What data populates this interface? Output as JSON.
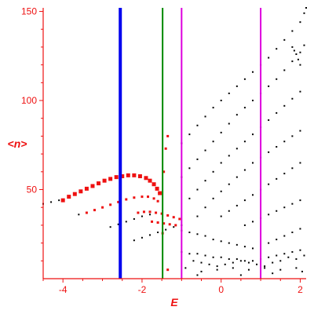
{
  "chart_data": {
    "type": "scatter",
    "title": "",
    "xlabel": "E",
    "ylabel": "<n>",
    "xlim": [
      -4.5,
      2.15
    ],
    "ylim": [
      0,
      152
    ],
    "xticks": [
      -4,
      -2,
      0,
      2
    ],
    "xtick_labels": [
      "-4",
      "-2",
      "0",
      "2"
    ],
    "yticks": [
      50,
      100,
      150
    ],
    "ytick_labels": [
      "50",
      "100",
      "150"
    ],
    "grid": false,
    "legend": "none",
    "colors": {
      "axis": "#ee1111",
      "red_points": "#ee1111",
      "black_points": "#000000",
      "blue_line": "#0000ee",
      "green_line": "#008800",
      "magenta_line": "#dd00dd"
    },
    "vertical_lines": [
      {
        "x": -2.55,
        "color": "blue",
        "width": "thick"
      },
      {
        "x": -1.48,
        "color": "green",
        "width": "medium"
      },
      {
        "x": -1.0,
        "color": "magenta",
        "width": "medium"
      },
      {
        "x": 1.0,
        "color": "magenta",
        "width": "medium"
      }
    ],
    "red_series": [
      {
        "points": [
          [
            -4.0,
            44
          ],
          [
            -3.85,
            46
          ],
          [
            -3.7,
            47.5
          ],
          [
            -3.55,
            49
          ],
          [
            -3.4,
            50.5
          ],
          [
            -3.25,
            52
          ],
          [
            -3.1,
            53.5
          ],
          [
            -2.95,
            55
          ],
          [
            -2.8,
            56
          ],
          [
            -2.65,
            57
          ],
          [
            -2.5,
            57.5
          ],
          [
            -2.35,
            58
          ],
          [
            -2.2,
            58
          ],
          [
            -2.05,
            57.5
          ],
          [
            -1.9,
            56.5
          ],
          [
            -1.8,
            55
          ],
          [
            -1.7,
            53
          ],
          [
            -1.62,
            50.5
          ],
          [
            -1.55,
            48
          ]
        ]
      },
      {
        "points": [
          [
            -3.4,
            37
          ],
          [
            -3.2,
            38.5
          ],
          [
            -3.0,
            40
          ],
          [
            -2.8,
            41.5
          ],
          [
            -2.6,
            43
          ],
          [
            -2.4,
            44.5
          ],
          [
            -2.2,
            45.5
          ],
          [
            -2.0,
            46
          ],
          [
            -1.85,
            46
          ],
          [
            -1.7,
            45
          ],
          [
            -1.6,
            43.5
          ]
        ]
      },
      {
        "points": [
          [
            -2.1,
            37
          ],
          [
            -1.95,
            37.5
          ],
          [
            -1.8,
            37.5
          ],
          [
            -1.65,
            37
          ],
          [
            -1.5,
            36.5
          ],
          [
            -1.35,
            35.5
          ],
          [
            -1.2,
            34.5
          ],
          [
            -1.05,
            33.5
          ]
        ]
      },
      {
        "points": [
          [
            -1.75,
            32
          ],
          [
            -1.6,
            31.5
          ],
          [
            -1.45,
            31
          ],
          [
            -1.3,
            30.5
          ],
          [
            -1.15,
            30
          ]
        ]
      },
      {
        "points": [
          [
            -1.48,
            25.5
          ],
          [
            -1.4,
            73
          ],
          [
            -1.35,
            80
          ],
          [
            -1.45,
            60
          ],
          [
            -1.35,
            5
          ]
        ]
      }
    ],
    "black_series": [
      {
        "points": [
          [
            -4.5,
            42
          ],
          [
            -4.3,
            43
          ],
          [
            -4.1,
            44
          ]
        ]
      },
      {
        "points": [
          [
            -3.6,
            36
          ],
          [
            -3.4,
            37
          ]
        ]
      },
      {
        "points": [
          [
            -2.8,
            29
          ],
          [
            -2.6,
            30.5
          ],
          [
            -2.4,
            32
          ],
          [
            -2.2,
            33.5
          ],
          [
            -2.0,
            35
          ],
          [
            -1.8,
            36
          ]
        ]
      },
      {
        "points": [
          [
            -2.2,
            21.5
          ],
          [
            -2.0,
            23
          ],
          [
            -1.8,
            24.5
          ],
          [
            -1.6,
            26
          ],
          [
            -1.4,
            27.5
          ],
          [
            -1.2,
            29
          ],
          [
            -1.0,
            30
          ]
        ]
      },
      {
        "points": [
          [
            -1.0,
            76
          ],
          [
            -0.8,
            81
          ],
          [
            -0.6,
            86
          ],
          [
            -0.4,
            91
          ],
          [
            -0.2,
            96
          ],
          [
            0.0,
            100
          ],
          [
            0.2,
            104
          ],
          [
            0.4,
            108
          ],
          [
            0.6,
            112
          ],
          [
            0.8,
            116
          ],
          [
            1.0,
            120
          ],
          [
            1.2,
            124
          ],
          [
            1.4,
            129
          ],
          [
            1.6,
            134
          ],
          [
            1.8,
            139
          ],
          [
            2.0,
            144
          ],
          [
            2.1,
            149
          ],
          [
            2.15,
            152
          ]
        ]
      },
      {
        "points": [
          [
            -1.0,
            57
          ],
          [
            -0.8,
            62
          ],
          [
            -0.6,
            67
          ],
          [
            -0.4,
            72
          ],
          [
            -0.2,
            77
          ],
          [
            0.0,
            82
          ],
          [
            0.2,
            87
          ],
          [
            0.4,
            92
          ],
          [
            0.6,
            96
          ],
          [
            0.8,
            100
          ],
          [
            1.0,
            104
          ],
          [
            1.2,
            108
          ],
          [
            1.4,
            112
          ],
          [
            1.6,
            117
          ],
          [
            1.8,
            122
          ],
          [
            2.0,
            127
          ],
          [
            2.1,
            131
          ]
        ]
      },
      {
        "points": [
          [
            -0.8,
            45
          ],
          [
            -0.6,
            50
          ],
          [
            -0.4,
            55
          ],
          [
            -0.2,
            60
          ],
          [
            0.0,
            65
          ],
          [
            0.2,
            69
          ],
          [
            0.4,
            73
          ],
          [
            0.6,
            77
          ],
          [
            0.8,
            81
          ],
          [
            1.0,
            85
          ],
          [
            1.2,
            89
          ],
          [
            1.4,
            93
          ],
          [
            1.6,
            97
          ],
          [
            1.8,
            101
          ],
          [
            2.0,
            105
          ]
        ]
      },
      {
        "points": [
          [
            -0.6,
            35
          ],
          [
            -0.4,
            40
          ],
          [
            -0.2,
            45
          ],
          [
            0.0,
            49
          ],
          [
            0.2,
            53
          ],
          [
            0.4,
            57
          ],
          [
            0.6,
            61
          ],
          [
            0.8,
            65
          ],
          [
            1.0,
            68
          ],
          [
            1.2,
            71
          ],
          [
            1.4,
            74
          ],
          [
            1.6,
            77
          ],
          [
            1.8,
            80
          ],
          [
            2.0,
            83
          ]
        ]
      },
      {
        "points": [
          [
            0.0,
            35
          ],
          [
            0.2,
            38
          ],
          [
            0.4,
            41
          ],
          [
            0.6,
            44
          ],
          [
            0.8,
            47
          ],
          [
            1.0,
            50
          ],
          [
            1.2,
            53
          ],
          [
            1.4,
            56
          ],
          [
            1.6,
            59
          ],
          [
            1.8,
            62
          ],
          [
            2.0,
            65
          ]
        ]
      },
      {
        "points": [
          [
            0.6,
            30
          ],
          [
            0.8,
            32
          ],
          [
            1.0,
            34
          ],
          [
            1.2,
            36
          ],
          [
            1.4,
            38
          ],
          [
            1.6,
            40
          ],
          [
            1.8,
            42
          ],
          [
            2.0,
            44
          ]
        ]
      },
      {
        "points": [
          [
            1.2,
            20
          ],
          [
            1.4,
            22
          ],
          [
            1.6,
            24
          ],
          [
            1.8,
            26
          ],
          [
            2.0,
            28
          ]
        ]
      },
      {
        "points": [
          [
            -1.0,
            27
          ],
          [
            -0.8,
            26
          ],
          [
            -0.6,
            25
          ],
          [
            -0.4,
            24
          ],
          [
            -0.2,
            22
          ],
          [
            0.0,
            21
          ],
          [
            0.2,
            20
          ],
          [
            0.4,
            19
          ],
          [
            0.6,
            18
          ],
          [
            0.8,
            17
          ]
        ]
      },
      {
        "points": [
          [
            -1.0,
            15
          ],
          [
            -0.8,
            14
          ],
          [
            -0.6,
            14
          ],
          [
            -0.4,
            13
          ],
          [
            -0.2,
            12
          ],
          [
            0.0,
            12
          ],
          [
            0.2,
            11
          ],
          [
            0.4,
            11
          ],
          [
            0.6,
            10
          ],
          [
            0.8,
            10
          ],
          [
            1.0,
            11
          ],
          [
            1.2,
            12
          ],
          [
            1.4,
            13
          ],
          [
            1.6,
            14
          ],
          [
            1.8,
            15
          ],
          [
            2.0,
            16
          ]
        ]
      },
      {
        "points": [
          [
            -0.7,
            10
          ],
          [
            -0.5,
            9
          ],
          [
            -0.3,
            8
          ],
          [
            -0.1,
            7
          ],
          [
            0.1,
            8
          ],
          [
            0.3,
            9
          ],
          [
            0.5,
            10
          ],
          [
            0.7,
            9
          ],
          [
            0.9,
            8
          ],
          [
            1.1,
            7
          ],
          [
            1.3,
            9
          ],
          [
            1.5,
            10
          ],
          [
            1.7,
            12
          ],
          [
            1.9,
            11
          ],
          [
            2.1,
            13
          ]
        ]
      },
      {
        "points": [
          [
            -0.9,
            6
          ],
          [
            -0.5,
            4
          ],
          [
            -0.1,
            5
          ],
          [
            0.3,
            6
          ],
          [
            0.7,
            5
          ],
          [
            1.1,
            6
          ],
          [
            1.5,
            5
          ],
          [
            1.9,
            6
          ],
          [
            -0.6,
            2
          ],
          [
            0.5,
            2
          ],
          [
            1.3,
            3
          ],
          [
            2.05,
            4
          ]
        ]
      },
      {
        "points": [
          [
            1.8,
            130
          ],
          [
            1.85,
            128
          ],
          [
            1.9,
            126
          ],
          [
            1.95,
            123
          ],
          [
            2.0,
            120
          ]
        ]
      }
    ]
  }
}
